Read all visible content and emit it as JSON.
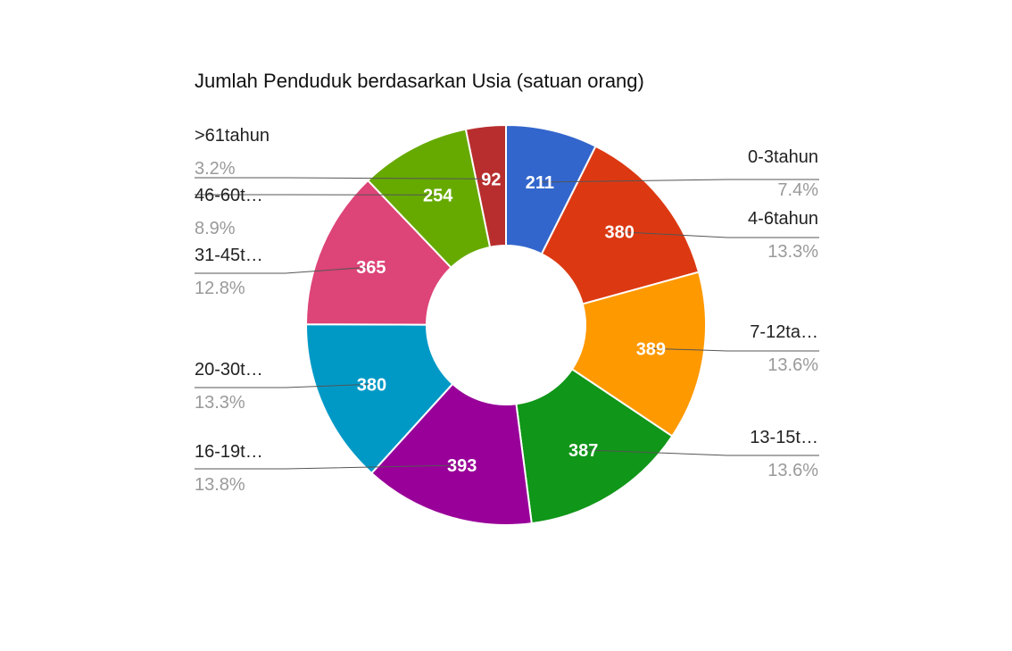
{
  "chart_data": {
    "type": "pie",
    "donut": true,
    "title": "Jumlah Penduduk berdasarkan Usia (satuan orang)",
    "slices": [
      {
        "label": "0-3tahun",
        "value": 211,
        "value_label": "211",
        "percent_label": "7.4%",
        "color": "#3366cc"
      },
      {
        "label": "4-6tahun",
        "value": 380,
        "value_label": "380",
        "percent_label": "13.3%",
        "color": "#dc3912"
      },
      {
        "label": "7-12ta…",
        "value": 389,
        "value_label": "389",
        "percent_label": "13.6%",
        "color": "#ff9900"
      },
      {
        "label": "13-15t…",
        "value": 387,
        "value_label": "387",
        "percent_label": "13.6%",
        "color": "#109618"
      },
      {
        "label": "16-19t…",
        "value": 393,
        "value_label": "393",
        "percent_label": "13.8%",
        "color": "#990099"
      },
      {
        "label": "20-30t…",
        "value": 380,
        "value_label": "380",
        "percent_label": "13.3%",
        "color": "#0099c6"
      },
      {
        "label": "31-45t…",
        "value": 365,
        "value_label": "365",
        "percent_label": "12.8%",
        "color": "#dd4477"
      },
      {
        "label": "46-60t…",
        "value": 254,
        "value_label": "254",
        "percent_label": "8.9%",
        "color": "#66aa00"
      },
      {
        "label": ">61tahun",
        "value": 92,
        "value_label": "92",
        "percent_label": "3.2%",
        "color": "#b82e2e"
      }
    ],
    "legend": "labeled-leader-lines"
  }
}
